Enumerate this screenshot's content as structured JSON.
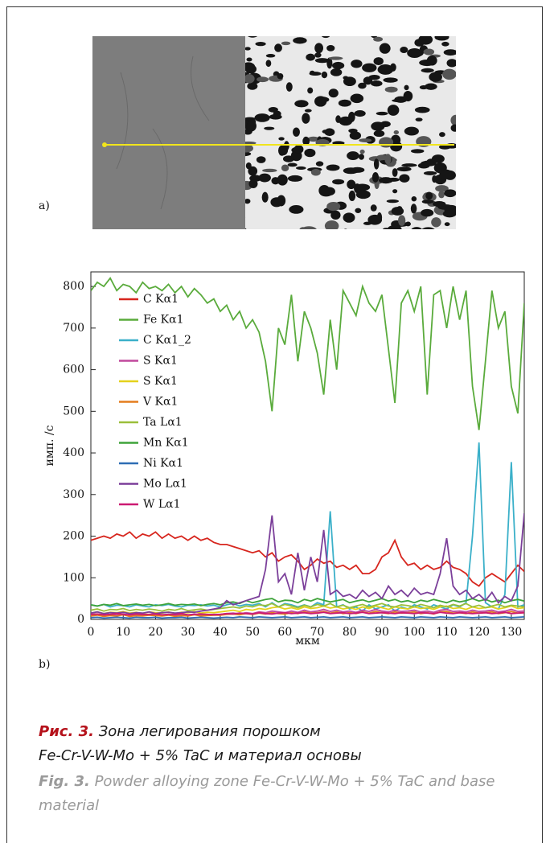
{
  "figure": {
    "panel_a_label": "a)",
    "panel_b_label": "b)"
  },
  "chart_data": {
    "type": "line",
    "x_label": "мкм",
    "y_label": "имп. /с",
    "xlim": [
      0,
      134
    ],
    "ylim": [
      0,
      835
    ],
    "xticks": [
      0,
      10,
      20,
      30,
      40,
      50,
      60,
      70,
      80,
      90,
      100,
      110,
      120,
      130
    ],
    "yticks": [
      0,
      100,
      200,
      300,
      400,
      500,
      600,
      700,
      800
    ],
    "legend": "upper left",
    "x": [
      0,
      2,
      4,
      6,
      8,
      10,
      12,
      14,
      16,
      18,
      20,
      22,
      24,
      26,
      28,
      30,
      32,
      34,
      36,
      38,
      40,
      42,
      44,
      46,
      48,
      50,
      52,
      54,
      56,
      58,
      60,
      62,
      64,
      66,
      68,
      70,
      72,
      74,
      76,
      78,
      80,
      82,
      84,
      86,
      88,
      90,
      92,
      94,
      96,
      98,
      100,
      102,
      104,
      106,
      108,
      110,
      112,
      114,
      116,
      118,
      120,
      122,
      124,
      126,
      128,
      130,
      132,
      134
    ],
    "series": [
      {
        "name": "C Kα1",
        "color": "#d7261e",
        "values": [
          190,
          195,
          200,
          195,
          205,
          200,
          210,
          195,
          205,
          200,
          210,
          195,
          205,
          195,
          200,
          190,
          200,
          190,
          195,
          185,
          180,
          180,
          175,
          170,
          165,
          160,
          165,
          150,
          160,
          140,
          150,
          155,
          140,
          120,
          130,
          145,
          135,
          140,
          125,
          130,
          120,
          130,
          110,
          110,
          120,
          150,
          160,
          190,
          150,
          130,
          135,
          120,
          130,
          120,
          125,
          140,
          125,
          120,
          110,
          90,
          80,
          100,
          110,
          100,
          90,
          110,
          130,
          115
        ]
      },
      {
        "name": "Fe Kα1",
        "color": "#5aab3c",
        "values": [
          790,
          810,
          800,
          820,
          790,
          805,
          800,
          785,
          810,
          795,
          800,
          790,
          805,
          785,
          800,
          775,
          795,
          780,
          760,
          770,
          740,
          755,
          720,
          740,
          700,
          720,
          690,
          620,
          500,
          700,
          660,
          780,
          620,
          740,
          700,
          640,
          540,
          720,
          600,
          790,
          760,
          730,
          800,
          760,
          740,
          780,
          650,
          520,
          760,
          790,
          740,
          800,
          540,
          780,
          790,
          700,
          800,
          720,
          790,
          560,
          455,
          620,
          790,
          700,
          740,
          560,
          495,
          760
        ]
      },
      {
        "name": "C Kα1_2",
        "color": "#3bb0c9",
        "values": [
          35,
          32,
          36,
          30,
          34,
          33,
          30,
          35,
          32,
          30,
          35,
          33,
          36,
          32,
          30,
          34,
          33,
          35,
          32,
          34,
          30,
          35,
          38,
          32,
          36,
          34,
          38,
          30,
          40,
          30,
          38,
          35,
          30,
          35,
          30,
          40,
          35,
          260,
          30,
          35,
          25,
          30,
          20,
          35,
          25,
          30,
          35,
          20,
          30,
          25,
          35,
          30,
          25,
          35,
          30,
          25,
          35,
          30,
          40,
          200,
          425,
          40,
          30,
          25,
          60,
          378,
          30,
          35
        ]
      },
      {
        "name": "S Kα1",
        "color": "#c0489c",
        "values": [
          10,
          12,
          9,
          11,
          10,
          13,
          9,
          11,
          10,
          12,
          11,
          10,
          12,
          9,
          11,
          10,
          13,
          10,
          11,
          12,
          12,
          14,
          15,
          13,
          16,
          14,
          18,
          16,
          20,
          18,
          16,
          20,
          17,
          22,
          18,
          20,
          24,
          19,
          22,
          18,
          20,
          17,
          22,
          19,
          24,
          20,
          18,
          22,
          19,
          20,
          22,
          18,
          20,
          17,
          22,
          24,
          19,
          20,
          18,
          22,
          19,
          20,
          22,
          18,
          20,
          24,
          19,
          20
        ]
      },
      {
        "name": "S Kα1",
        "color": "#e5d11c",
        "values": [
          15,
          18,
          14,
          17,
          16,
          19,
          15,
          17,
          14,
          18,
          16,
          15,
          18,
          14,
          17,
          16,
          19,
          15,
          17,
          16,
          18,
          20,
          22,
          19,
          24,
          22,
          26,
          24,
          28,
          30,
          25,
          28,
          24,
          30,
          26,
          28,
          32,
          27,
          30,
          25,
          28,
          24,
          30,
          26,
          32,
          28,
          24,
          30,
          27,
          25,
          30,
          26,
          28,
          24,
          30,
          32,
          26,
          28,
          24,
          30,
          26,
          28,
          30,
          25,
          28,
          32,
          26,
          28
        ]
      },
      {
        "name": "V Kα1",
        "color": "#e47d1e",
        "values": [
          8,
          10,
          7,
          9,
          8,
          11,
          7,
          9,
          8,
          10,
          9,
          8,
          10,
          7,
          9,
          8,
          11,
          8,
          9,
          10,
          10,
          12,
          13,
          11,
          14,
          12,
          15,
          13,
          16,
          14,
          13,
          16,
          14,
          18,
          15,
          16,
          19,
          15,
          18,
          14,
          16,
          14,
          18,
          15,
          19,
          16,
          14,
          18,
          15,
          16,
          18,
          14,
          16,
          13,
          18,
          19,
          15,
          16,
          14,
          18,
          15,
          16,
          18,
          14,
          16,
          19,
          15,
          16
        ]
      },
      {
        "name": "Ta Lα1",
        "color": "#9bbf3a",
        "values": [
          22,
          25,
          20,
          24,
          23,
          26,
          21,
          24,
          22,
          25,
          23,
          20,
          24,
          22,
          26,
          21,
          23,
          25,
          22,
          24,
          26,
          28,
          30,
          27,
          32,
          30,
          35,
          33,
          38,
          30,
          36,
          32,
          28,
          34,
          30,
          36,
          32,
          38,
          30,
          34,
          28,
          32,
          36,
          30,
          34,
          38,
          32,
          30,
          35,
          33,
          30,
          36,
          32,
          28,
          34,
          30,
          36,
          32,
          38,
          30,
          34,
          28,
          32,
          36,
          30,
          34,
          32,
          30
        ]
      },
      {
        "name": "Mn Kα1",
        "color": "#3fa33a",
        "values": [
          35,
          32,
          36,
          34,
          38,
          33,
          35,
          37,
          34,
          36,
          33,
          35,
          38,
          34,
          36,
          35,
          37,
          33,
          36,
          38,
          35,
          40,
          42,
          38,
          45,
          40,
          44,
          48,
          50,
          42,
          46,
          45,
          40,
          48,
          44,
          50,
          46,
          42,
          45,
          48,
          40,
          44,
          47,
          42,
          46,
          50,
          44,
          48,
          42,
          45,
          40,
          46,
          43,
          48,
          44,
          40,
          46,
          42,
          45,
          50,
          44,
          48,
          42,
          46,
          40,
          45,
          48,
          44
        ]
      },
      {
        "name": "Ni Kα1",
        "color": "#2e6db4",
        "values": [
          4,
          5,
          3,
          4,
          5,
          4,
          3,
          5,
          4,
          4,
          5,
          3,
          4,
          4,
          5,
          3,
          4,
          5,
          4,
          3,
          4,
          5,
          4,
          6,
          5,
          4,
          6,
          5,
          4,
          5,
          6,
          4,
          5,
          6,
          4,
          5,
          6,
          4,
          5,
          6,
          4,
          5,
          6,
          4,
          5,
          6,
          5,
          4,
          6,
          5,
          4,
          6,
          5,
          4,
          6,
          5,
          4,
          6,
          5,
          4,
          5,
          6,
          4,
          5,
          6,
          4,
          5,
          6
        ]
      },
      {
        "name": "Mo Lα1",
        "color": "#7b3f9a",
        "values": [
          15,
          18,
          14,
          16,
          15,
          17,
          14,
          16,
          15,
          18,
          14,
          16,
          17,
          15,
          16,
          18,
          17,
          20,
          22,
          25,
          28,
          45,
          35,
          40,
          45,
          50,
          55,
          120,
          250,
          90,
          110,
          60,
          160,
          70,
          150,
          90,
          215,
          60,
          70,
          55,
          60,
          50,
          70,
          55,
          65,
          50,
          80,
          60,
          70,
          55,
          75,
          60,
          65,
          60,
          110,
          195,
          80,
          60,
          70,
          50,
          60,
          45,
          65,
          40,
          55,
          45,
          80,
          255
        ]
      },
      {
        "name": "W Lα1",
        "color": "#cc1a72",
        "values": [
          12,
          13,
          11,
          12,
          14,
          12,
          11,
          13,
          12,
          12,
          13,
          11,
          12,
          12,
          14,
          11,
          12,
          13,
          12,
          11,
          12,
          14,
          13,
          15,
          14,
          13,
          16,
          14,
          13,
          15,
          16,
          14,
          15,
          16,
          14,
          15,
          17,
          14,
          15,
          16,
          14,
          15,
          17,
          14,
          15,
          16,
          15,
          14,
          16,
          15,
          14,
          16,
          15,
          14,
          17,
          15,
          14,
          16,
          15,
          14,
          15,
          16,
          14,
          15,
          17,
          14,
          15,
          16
        ]
      }
    ]
  },
  "caption": {
    "ru_label": "Рис. 3.",
    "ru_line1": "Зона легирования порошком",
    "ru_line2": "Fe-Cr-V-W-Mo + 5% TaC и материал основы",
    "en_label": "Fig. 3.",
    "en_text": "Powder alloying zone Fe-Cr-V-W-Mo + 5% TaC and base material"
  }
}
